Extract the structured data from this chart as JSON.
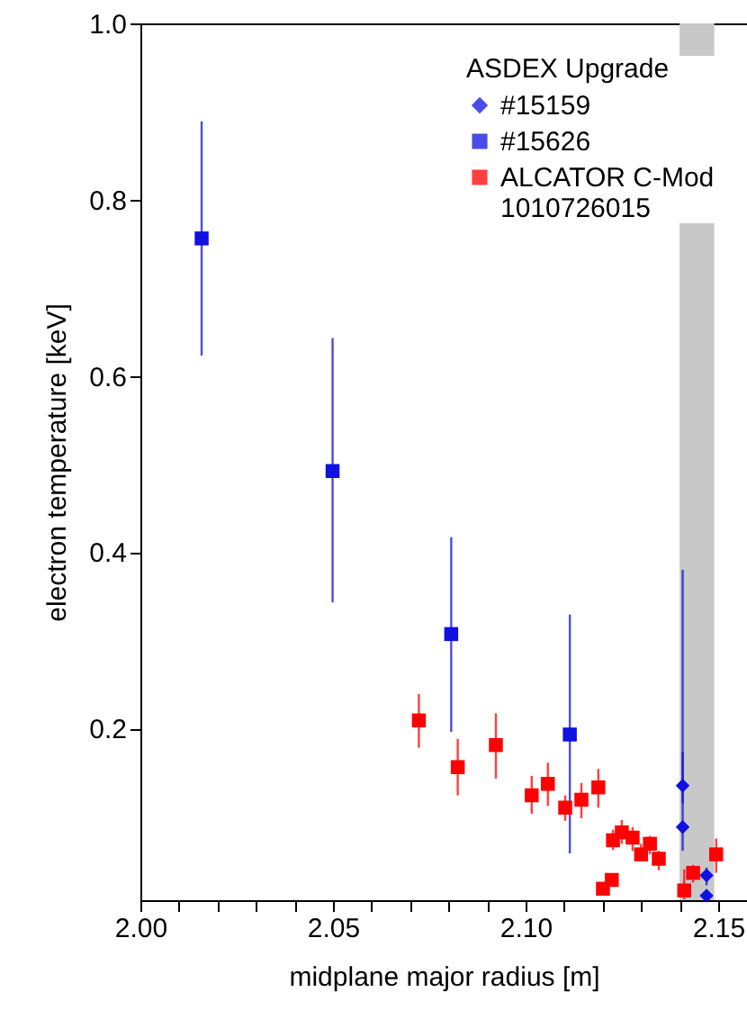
{
  "chart_data": {
    "type": "scatter",
    "xlabel": "midplane major radius [m]",
    "ylabel": "electron temperature [keV]",
    "legend_title": "ASDEX Upgrade",
    "legend": "top right",
    "xlim": [
      2.0,
      2.1575
    ],
    "ylim": [
      0.005,
      1.0
    ],
    "xticks": [
      {
        "value": 2.0,
        "label": "2.00"
      },
      {
        "value": 2.01,
        "label": null
      },
      {
        "value": 2.02,
        "label": null
      },
      {
        "value": 2.03,
        "label": null
      },
      {
        "value": 2.04,
        "label": null
      },
      2.05,
      {
        "value": 2.06,
        "label": null
      },
      {
        "value": 2.07,
        "label": null
      },
      {
        "value": 2.08,
        "label": null
      },
      {
        "value": 2.09,
        "label": null
      },
      {
        "value": 2.1,
        "label": "2.10"
      },
      {
        "value": 2.11,
        "label": null
      },
      {
        "value": 2.12,
        "label": null
      },
      {
        "value": 2.13,
        "label": null
      },
      {
        "value": 2.14,
        "label": null
      },
      2.15
    ],
    "yticks": [
      0.2,
      0.4,
      0.6,
      0.8,
      {
        "value": 1.0,
        "label": "1.0"
      }
    ],
    "bands": [
      {
        "axis": "x",
        "from": 2.14,
        "to": 2.149,
        "color": "#c8c8c8"
      }
    ],
    "series": [
      {
        "name": "#15159",
        "color": "#1010e0",
        "marker": "diamond",
        "x": [
          2.1408,
          2.1408,
          2.147,
          2.147
        ],
        "values": [
          0.135,
          0.088,
          0.033,
          0.01
        ],
        "errors": [
          [
            0.115,
            0.38
          ],
          [
            0.061,
            0.173
          ],
          [
            0.022,
            0.042
          ],
          null
        ]
      },
      {
        "name": "#15626",
        "color": "#1010e0",
        "marker": "square",
        "x": [
          2.0159,
          2.0499,
          2.0807,
          2.1115
        ],
        "values": [
          0.756,
          0.492,
          0.307,
          0.193
        ],
        "errors": [
          [
            0.623,
            0.889
          ],
          [
            0.343,
            0.643
          ],
          [
            0.196,
            0.417
          ],
          [
            0.058,
            0.329
          ]
        ]
      },
      {
        "name": "ALCATOR C-Mod\n1010726015",
        "color": "#ff0000",
        "marker": "square",
        "x": [
          2.0723,
          2.0824,
          2.0923,
          2.1016,
          2.1058,
          2.1103,
          2.1145,
          2.1189,
          2.1201,
          2.1224,
          2.1227,
          2.125,
          2.1278,
          2.13,
          2.1323,
          2.1346,
          2.1412,
          2.1435,
          2.1495
        ],
        "values": [
          0.209,
          0.156,
          0.181,
          0.124,
          0.137,
          0.11,
          0.119,
          0.133,
          0.018,
          0.028,
          0.073,
          0.082,
          0.076,
          0.057,
          0.069,
          0.052,
          0.016,
          0.036,
          0.057
        ],
        "errors": [
          [
            0.178,
            0.239
          ],
          [
            0.124,
            0.188
          ],
          [
            0.143,
            0.217
          ],
          [
            0.103,
            0.146
          ],
          [
            0.112,
            0.161
          ],
          [
            0.095,
            0.124
          ],
          [
            0.098,
            0.138
          ],
          [
            0.11,
            0.154
          ],
          null,
          null,
          [
            0.062,
            0.085
          ],
          [
            0.069,
            0.096
          ],
          [
            0.061,
            0.088
          ],
          [
            0.049,
            0.069
          ],
          [
            0.057,
            0.078
          ],
          [
            0.039,
            0.061
          ],
          [
            0.006,
            0.04
          ],
          [
            0.025,
            0.045
          ],
          [
            0.036,
            0.075
          ]
        ]
      }
    ]
  }
}
